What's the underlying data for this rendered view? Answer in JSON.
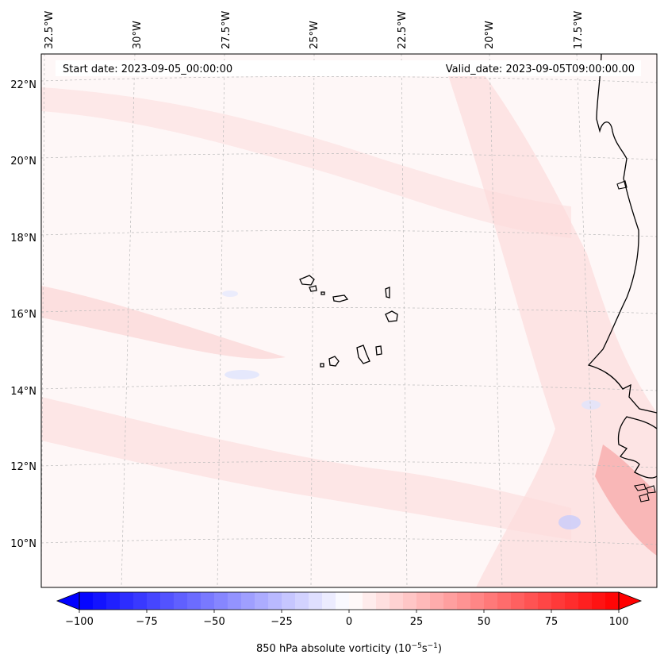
{
  "map": {
    "header": {
      "start_date": "Start date: 2023-09-05_00:00:00",
      "valid_date": "Valid_date: 2023-09-05T09:00:00.00"
    },
    "lon_labels": [
      "32.5°W",
      "30°W",
      "27.5°W",
      "25°W",
      "22.5°W",
      "20°W",
      "17.5°W"
    ],
    "lat_labels": [
      "22°N",
      "20°N",
      "18°N",
      "16°N",
      "14°N",
      "12°N",
      "10°N"
    ],
    "colorbar": {
      "ticks": [
        "−100",
        "−75",
        "−50",
        "−25",
        "0",
        "25",
        "50",
        "75",
        "100"
      ],
      "label": "850 hPa absolute vorticity (10",
      "exp1": "−5",
      "label_mid": "s",
      "exp2": "−1",
      "label_end": ")",
      "min": -100,
      "max": 100,
      "neg_color": "#0000ff",
      "zero_color": "#ffffff",
      "pos_color": "#ff0000"
    }
  }
}
